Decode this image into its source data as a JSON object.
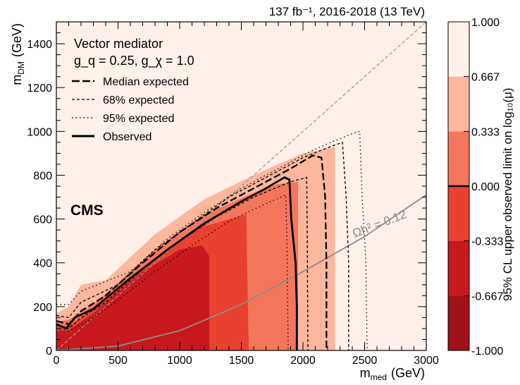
{
  "chart_data": {
    "type": "heatmap",
    "header": "137 fb⁻¹, 2016-2018 (13 TeV)",
    "experiment": "CMS",
    "xlabel": "m",
    "xlabel_sub": "med",
    "xlabel_unit": "(GeV)",
    "ylabel": "m",
    "ylabel_sub": "DM",
    "ylabel_unit": "(GeV)",
    "xlim": [
      0,
      3000
    ],
    "ylim": [
      0,
      1500
    ],
    "x_ticks": [
      "0",
      "500",
      "1000",
      "1500",
      "2000",
      "2500",
      "3000"
    ],
    "y_ticks": [
      "0",
      "200",
      "400",
      "600",
      "800",
      "1000",
      "1200",
      "1400"
    ],
    "colorbar": {
      "label": "95% CL upper observed limit on log₁₀(μ)",
      "range": [
        -1.0,
        1.0
      ],
      "ticks": [
        "-1.000",
        "-0.667",
        "-0.333",
        "0.000",
        "0.333",
        "0.667",
        "1.000"
      ],
      "levels": [
        {
          "from": -1.0,
          "to": -0.667,
          "color": "#a11218"
        },
        {
          "from": -0.667,
          "to": -0.333,
          "color": "#c8191e"
        },
        {
          "from": -0.333,
          "to": 0.0,
          "color": "#e8412f"
        },
        {
          "from": 0.0,
          "to": 0.333,
          "color": "#f5775b"
        },
        {
          "from": 0.333,
          "to": 0.667,
          "color": "#fcb79d"
        },
        {
          "from": 0.667,
          "to": 1.0,
          "color": "#fff0ea"
        }
      ]
    },
    "legend": {
      "title": "Vector mediator",
      "couplings": "g_q = 0.25, g_χ = 1.0",
      "position": "top-left",
      "entries": [
        {
          "label": "Median expected",
          "style": "long-dash"
        },
        {
          "label": "68% expected",
          "style": "dash"
        },
        {
          "label": "95% expected",
          "style": "dot"
        },
        {
          "label": "Observed",
          "style": "solid-thick"
        }
      ]
    },
    "relic_label": "Ωh² = 0.12",
    "regions": [
      {
        "level": 0.667,
        "points": [
          [
            0,
            230
          ],
          [
            120,
            240
          ],
          [
            200,
            400
          ],
          [
            300,
            330
          ],
          [
            800,
            590
          ],
          [
            1500,
            800
          ],
          [
            2000,
            960
          ],
          [
            2400,
            1070
          ],
          [
            2600,
            1110
          ],
          [
            2660,
            1080
          ],
          [
            2660,
            0
          ],
          [
            0,
            0
          ]
        ]
      },
      {
        "level": 0.333,
        "points": [
          [
            0,
            170
          ],
          [
            100,
            200
          ],
          [
            200,
            300
          ],
          [
            400,
            320
          ],
          [
            800,
            530
          ],
          [
            1200,
            690
          ],
          [
            1600,
            800
          ],
          [
            2000,
            900
          ],
          [
            2260,
            930
          ],
          [
            2260,
            0
          ],
          [
            0,
            0
          ]
        ]
      },
      {
        "level": 0.0,
        "points": [
          [
            0,
            130
          ],
          [
            100,
            140
          ],
          [
            300,
            210
          ],
          [
            800,
            460
          ],
          [
            1200,
            620
          ],
          [
            1600,
            720
          ],
          [
            1800,
            760
          ],
          [
            1960,
            770
          ],
          [
            1960,
            0
          ],
          [
            0,
            0
          ]
        ]
      },
      {
        "level": -0.333,
        "points": [
          [
            0,
            110
          ],
          [
            100,
            110
          ],
          [
            300,
            190
          ],
          [
            800,
            420
          ],
          [
            1150,
            560
          ],
          [
            1540,
            620
          ],
          [
            1560,
            0
          ],
          [
            0,
            0
          ]
        ]
      },
      {
        "level": -0.667,
        "points": [
          [
            0,
            90
          ],
          [
            100,
            90
          ],
          [
            300,
            170
          ],
          [
            700,
            360
          ],
          [
            1000,
            460
          ],
          [
            1180,
            480
          ],
          [
            1240,
            430
          ],
          [
            1240,
            0
          ],
          [
            0,
            0
          ]
        ]
      }
    ],
    "contours": {
      "observed": [
        [
          0,
          120
        ],
        [
          80,
          100
        ],
        [
          150,
          150
        ],
        [
          300,
          190
        ],
        [
          600,
          330
        ],
        [
          900,
          460
        ],
        [
          1200,
          580
        ],
        [
          1500,
          680
        ],
        [
          1700,
          740
        ],
        [
          1850,
          790
        ],
        [
          1890,
          780
        ],
        [
          1905,
          600
        ],
        [
          1940,
          400
        ],
        [
          1950,
          200
        ],
        [
          1950,
          0
        ]
      ],
      "expected_median": [
        [
          0,
          135
        ],
        [
          100,
          120
        ],
        [
          200,
          180
        ],
        [
          400,
          250
        ],
        [
          700,
          400
        ],
        [
          1000,
          540
        ],
        [
          1300,
          650
        ],
        [
          1600,
          740
        ],
        [
          1900,
          830
        ],
        [
          2080,
          890
        ],
        [
          2150,
          880
        ],
        [
          2180,
          700
        ],
        [
          2190,
          400
        ],
        [
          2190,
          0
        ]
      ],
      "expected_68_up": [
        [
          0,
          160
        ],
        [
          100,
          150
        ],
        [
          200,
          220
        ],
        [
          500,
          300
        ],
        [
          800,
          460
        ],
        [
          1100,
          580
        ],
        [
          1400,
          700
        ],
        [
          1700,
          790
        ],
        [
          2000,
          880
        ],
        [
          2220,
          930
        ],
        [
          2320,
          950
        ],
        [
          2350,
          700
        ],
        [
          2370,
          400
        ],
        [
          2370,
          0
        ]
      ],
      "expected_68_down": [
        [
          0,
          115
        ],
        [
          100,
          100
        ],
        [
          200,
          150
        ],
        [
          400,
          220
        ],
        [
          700,
          370
        ],
        [
          1000,
          500
        ],
        [
          1300,
          610
        ],
        [
          1600,
          700
        ],
        [
          1900,
          770
        ],
        [
          2030,
          790
        ],
        [
          2035,
          500
        ],
        [
          2040,
          0
        ]
      ],
      "expected_95_up": [
        [
          0,
          210
        ],
        [
          100,
          210
        ],
        [
          200,
          270
        ],
        [
          600,
          360
        ],
        [
          900,
          510
        ],
        [
          1200,
          630
        ],
        [
          1500,
          740
        ],
        [
          1800,
          830
        ],
        [
          2100,
          920
        ],
        [
          2400,
          990
        ],
        [
          2460,
          1000
        ],
        [
          2480,
          700
        ],
        [
          2510,
          400
        ],
        [
          2520,
          0
        ]
      ],
      "expected_95_down": [
        [
          0,
          100
        ],
        [
          100,
          90
        ],
        [
          250,
          130
        ],
        [
          500,
          230
        ],
        [
          800,
          360
        ],
        [
          1100,
          480
        ],
        [
          1400,
          590
        ],
        [
          1700,
          670
        ],
        [
          1860,
          710
        ],
        [
          1870,
          500
        ],
        [
          1880,
          0
        ]
      ],
      "diagonal": [
        [
          0,
          0
        ],
        [
          3000,
          1500
        ]
      ],
      "relic": [
        [
          0,
          0
        ],
        [
          500,
          20
        ],
        [
          1000,
          90
        ],
        [
          1500,
          210
        ],
        [
          2000,
          360
        ],
        [
          2500,
          520
        ],
        [
          3000,
          710
        ]
      ]
    }
  }
}
